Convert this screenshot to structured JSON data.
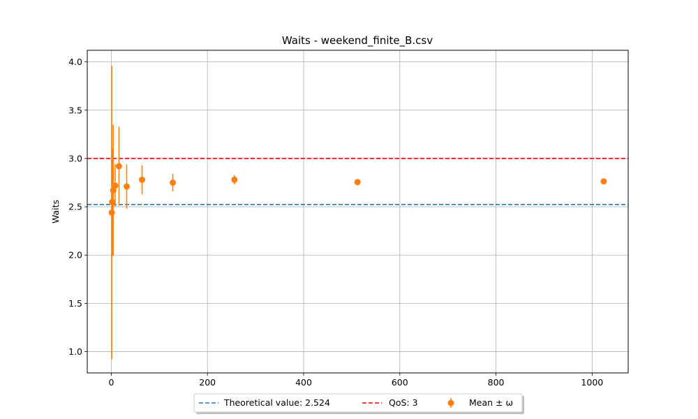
{
  "chart_data": {
    "type": "scatter",
    "title": "Waits - weekend_finite_B.csv",
    "xlabel": "",
    "ylabel": "Waits",
    "xlim": [
      -50,
      1075
    ],
    "ylim": [
      0.78,
      4.12
    ],
    "xticks": [
      0,
      200,
      400,
      600,
      800,
      1000
    ],
    "yticks": [
      1.0,
      1.5,
      2.0,
      2.5,
      3.0,
      3.5,
      4.0
    ],
    "grid": true,
    "legend_position": "bottom-center",
    "reference_lines": [
      {
        "name": "Theoretical value: 2.524",
        "y": 2.524,
        "style": "dashed",
        "color": "#1f77b4"
      },
      {
        "name": "QoS: 3",
        "y": 3.0,
        "style": "dashed",
        "color": "#ff0000"
      }
    ],
    "series": [
      {
        "name": "Mean ± ω",
        "color": "#ff7f0e",
        "points": [
          {
            "x": 1,
            "y": 2.44,
            "err": 1.52
          },
          {
            "x": 2,
            "y": 2.55,
            "err": 0.55
          },
          {
            "x": 4,
            "y": 2.67,
            "err": 0.68
          },
          {
            "x": 8,
            "y": 2.72,
            "err": 0.22
          },
          {
            "x": 16,
            "y": 2.92,
            "err": 0.41
          },
          {
            "x": 32,
            "y": 2.71,
            "err": 0.23
          },
          {
            "x": 64,
            "y": 2.78,
            "err": 0.15
          },
          {
            "x": 128,
            "y": 2.75,
            "err": 0.09
          },
          {
            "x": 256,
            "y": 2.78,
            "err": 0.05
          },
          {
            "x": 512,
            "y": 2.755,
            "err": 0.03
          },
          {
            "x": 1024,
            "y": 2.763,
            "err": 0.015
          }
        ]
      }
    ]
  },
  "legend": {
    "theoretical_label": "Theoretical value: 2.524",
    "qos_label": "QoS: 3",
    "mean_label": "Mean ± ω"
  }
}
